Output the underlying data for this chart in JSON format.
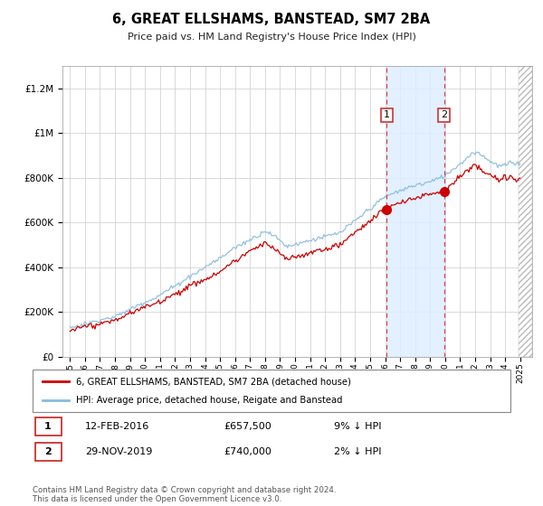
{
  "title": "6, GREAT ELLSHAMS, BANSTEAD, SM7 2BA",
  "subtitle": "Price paid vs. HM Land Registry's House Price Index (HPI)",
  "legend_line1": "6, GREAT ELLSHAMS, BANSTEAD, SM7 2BA (detached house)",
  "legend_line2": "HPI: Average price, detached house, Reigate and Banstead",
  "annotation1_date": "12-FEB-2016",
  "annotation1_price": "£657,500",
  "annotation1_hpi": "9% ↓ HPI",
  "annotation2_date": "29-NOV-2019",
  "annotation2_price": "£740,000",
  "annotation2_hpi": "2% ↓ HPI",
  "footnote": "Contains HM Land Registry data © Crown copyright and database right 2024.\nThis data is licensed under the Open Government Licence v3.0.",
  "sale1_year": 2016.11,
  "sale1_price": 657500,
  "sale2_year": 2019.92,
  "sale2_price": 740000,
  "hpi_color": "#88bbdd",
  "price_color": "#cc0000",
  "shade_color": "#ddeeff",
  "marker_box_color": "#cc3333",
  "dashed_line_color": "#dd4444",
  "ylim_max": 1300000,
  "xmin": 1994.5,
  "xmax": 2025.8
}
